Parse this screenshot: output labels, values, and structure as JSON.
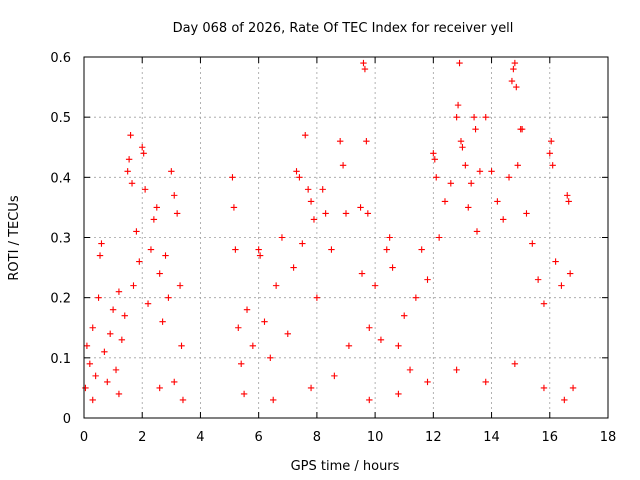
{
  "chart_data": {
    "type": "scatter",
    "title": "Day 068 of 2026, Rate Of TEC Index for receiver yell",
    "xlabel": "GPS time / hours",
    "ylabel": "ROTI / TECUs",
    "xlim": [
      0,
      18
    ],
    "ylim": [
      0,
      0.6
    ],
    "x_ticks": [
      0,
      2,
      4,
      6,
      8,
      10,
      12,
      14,
      16,
      18
    ],
    "x_tick_labels": [
      "0",
      "2",
      "4",
      "6",
      "8",
      "10",
      "12",
      "14",
      "16",
      "18"
    ],
    "y_ticks": [
      0,
      0.1,
      0.2,
      0.3,
      0.4,
      0.5,
      0.6
    ],
    "y_tick_labels": [
      "0",
      "0.1",
      "0.2",
      "0.3",
      "0.4",
      "0.5",
      "0.6"
    ],
    "grid": true,
    "marker": "+",
    "color": "#ff0000",
    "series": [
      {
        "name": "ROTI",
        "points": [
          [
            0.05,
            0.05
          ],
          [
            0.1,
            0.12
          ],
          [
            0.2,
            0.09
          ],
          [
            0.3,
            0.15
          ],
          [
            0.4,
            0.07
          ],
          [
            0.5,
            0.2
          ],
          [
            0.55,
            0.27
          ],
          [
            0.6,
            0.29
          ],
          [
            0.7,
            0.11
          ],
          [
            0.8,
            0.06
          ],
          [
            0.9,
            0.14
          ],
          [
            1.0,
            0.18
          ],
          [
            1.1,
            0.08
          ],
          [
            1.2,
            0.21
          ],
          [
            1.3,
            0.13
          ],
          [
            1.4,
            0.17
          ],
          [
            1.5,
            0.41
          ],
          [
            1.55,
            0.43
          ],
          [
            1.6,
            0.47
          ],
          [
            1.65,
            0.39
          ],
          [
            1.7,
            0.22
          ],
          [
            1.8,
            0.31
          ],
          [
            1.9,
            0.26
          ],
          [
            2.0,
            0.45
          ],
          [
            2.05,
            0.44
          ],
          [
            2.1,
            0.38
          ],
          [
            2.2,
            0.19
          ],
          [
            2.3,
            0.28
          ],
          [
            2.4,
            0.33
          ],
          [
            2.5,
            0.35
          ],
          [
            2.6,
            0.24
          ],
          [
            2.7,
            0.16
          ],
          [
            2.8,
            0.27
          ],
          [
            2.9,
            0.2
          ],
          [
            3.0,
            0.41
          ],
          [
            3.1,
            0.37
          ],
          [
            3.2,
            0.34
          ],
          [
            3.3,
            0.22
          ],
          [
            3.35,
            0.12
          ],
          [
            3.4,
            0.03
          ],
          [
            5.1,
            0.4
          ],
          [
            5.15,
            0.35
          ],
          [
            5.2,
            0.28
          ],
          [
            5.3,
            0.15
          ],
          [
            5.4,
            0.09
          ],
          [
            5.6,
            0.18
          ],
          [
            5.8,
            0.12
          ],
          [
            6.0,
            0.28
          ],
          [
            6.05,
            0.27
          ],
          [
            6.2,
            0.16
          ],
          [
            6.4,
            0.1
          ],
          [
            6.6,
            0.22
          ],
          [
            6.8,
            0.3
          ],
          [
            7.0,
            0.14
          ],
          [
            7.2,
            0.25
          ],
          [
            7.3,
            0.41
          ],
          [
            7.4,
            0.4
          ],
          [
            7.5,
            0.29
          ],
          [
            7.6,
            0.47
          ],
          [
            7.7,
            0.38
          ],
          [
            7.8,
            0.36
          ],
          [
            7.9,
            0.33
          ],
          [
            8.0,
            0.2
          ],
          [
            8.2,
            0.38
          ],
          [
            8.3,
            0.34
          ],
          [
            8.5,
            0.28
          ],
          [
            8.8,
            0.46
          ],
          [
            8.9,
            0.42
          ],
          [
            9.0,
            0.34
          ],
          [
            9.1,
            0.12
          ],
          [
            9.5,
            0.35
          ],
          [
            9.55,
            0.24
          ],
          [
            9.6,
            0.59
          ],
          [
            9.65,
            0.58
          ],
          [
            9.7,
            0.46
          ],
          [
            9.75,
            0.34
          ],
          [
            9.8,
            0.15
          ],
          [
            10.0,
            0.22
          ],
          [
            10.2,
            0.13
          ],
          [
            10.4,
            0.28
          ],
          [
            10.5,
            0.3
          ],
          [
            10.6,
            0.25
          ],
          [
            10.8,
            0.12
          ],
          [
            11.0,
            0.17
          ],
          [
            11.2,
            0.08
          ],
          [
            11.4,
            0.2
          ],
          [
            11.6,
            0.28
          ],
          [
            11.8,
            0.23
          ],
          [
            12.0,
            0.44
          ],
          [
            12.05,
            0.43
          ],
          [
            12.1,
            0.4
          ],
          [
            12.2,
            0.3
          ],
          [
            12.4,
            0.36
          ],
          [
            12.6,
            0.39
          ],
          [
            12.8,
            0.5
          ],
          [
            12.85,
            0.52
          ],
          [
            12.9,
            0.59
          ],
          [
            12.95,
            0.46
          ],
          [
            13.0,
            0.45
          ],
          [
            13.1,
            0.42
          ],
          [
            13.2,
            0.35
          ],
          [
            13.3,
            0.39
          ],
          [
            13.4,
            0.5
          ],
          [
            13.45,
            0.48
          ],
          [
            13.5,
            0.31
          ],
          [
            13.6,
            0.41
          ],
          [
            13.8,
            0.5
          ],
          [
            14.0,
            0.41
          ],
          [
            14.2,
            0.36
          ],
          [
            14.4,
            0.33
          ],
          [
            14.6,
            0.4
          ],
          [
            14.7,
            0.56
          ],
          [
            14.75,
            0.58
          ],
          [
            14.8,
            0.59
          ],
          [
            14.85,
            0.55
          ],
          [
            14.9,
            0.42
          ],
          [
            15.0,
            0.48
          ],
          [
            15.05,
            0.48
          ],
          [
            15.2,
            0.34
          ],
          [
            15.4,
            0.29
          ],
          [
            15.6,
            0.23
          ],
          [
            15.8,
            0.19
          ],
          [
            16.0,
            0.44
          ],
          [
            16.05,
            0.46
          ],
          [
            16.1,
            0.42
          ],
          [
            16.2,
            0.26
          ],
          [
            16.4,
            0.22
          ],
          [
            16.6,
            0.37
          ],
          [
            16.65,
            0.36
          ],
          [
            16.7,
            0.24
          ],
          [
            16.8,
            0.05
          ],
          [
            0.3,
            0.03
          ],
          [
            1.2,
            0.04
          ],
          [
            2.6,
            0.05
          ],
          [
            3.1,
            0.06
          ],
          [
            5.5,
            0.04
          ],
          [
            6.5,
            0.03
          ],
          [
            7.8,
            0.05
          ],
          [
            8.6,
            0.07
          ],
          [
            9.8,
            0.03
          ],
          [
            10.8,
            0.04
          ],
          [
            11.8,
            0.06
          ],
          [
            12.8,
            0.08
          ],
          [
            13.8,
            0.06
          ],
          [
            14.8,
            0.09
          ],
          [
            15.8,
            0.05
          ],
          [
            16.5,
            0.03
          ]
        ]
      }
    ]
  }
}
